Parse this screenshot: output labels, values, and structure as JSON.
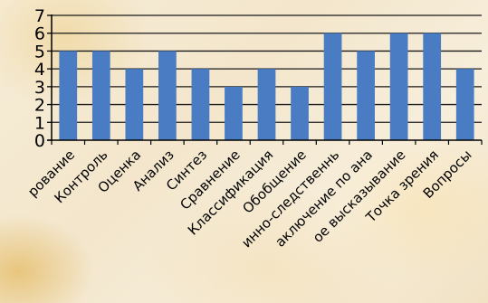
{
  "chart_data": {
    "type": "bar",
    "categories": [
      "рование",
      "Контроль",
      "Оценка",
      "Анализ",
      "Синтез",
      "Сравнение",
      "Классификация",
      "Обобщение",
      "инно-следственнь",
      "аключение по ана",
      "ое высказывание",
      "Точка зрения",
      "Вопросы"
    ],
    "values": [
      5,
      5,
      4,
      5,
      4,
      3,
      4,
      3,
      6,
      5,
      6,
      6,
      4
    ],
    "ylim": [
      0,
      7
    ],
    "yticks": [
      "0",
      "1",
      "2",
      "3",
      "4",
      "5",
      "6",
      "7"
    ],
    "grid": true,
    "legend": "none",
    "bar_color": "#4a7cc4"
  }
}
